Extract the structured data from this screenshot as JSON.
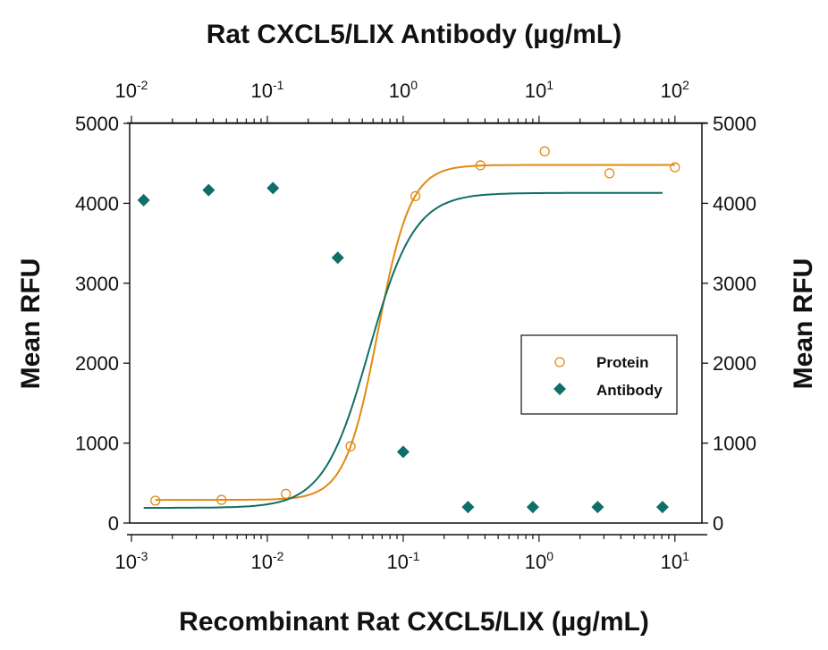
{
  "chart_data": {
    "type": "scatter",
    "title_top": "Rat CXCL5/LIX Antibody (µg/mL)",
    "xlabel": "Recombinant Rat CXCL5/LIX (µg/mL)",
    "ylabel": "Mean RFU",
    "ylabel_right": "Mean RFU",
    "x_scale": "log",
    "xlim": [
      0.00097,
      15.8
    ],
    "x_top_scale": "log",
    "x_top_lim": [
      0.0097,
      158
    ],
    "ylim": [
      0,
      5000
    ],
    "y_ticks": [
      "0",
      "1000",
      "2000",
      "3000",
      "4000",
      "5000"
    ],
    "x_ticks": [
      {
        "base": "10",
        "exp": "-3"
      },
      {
        "base": "10",
        "exp": "-2"
      },
      {
        "base": "10",
        "exp": "-1"
      },
      {
        "base": "10",
        "exp": "0"
      },
      {
        "base": "10",
        "exp": "1"
      }
    ],
    "x_top_ticks": [
      {
        "base": "10",
        "exp": "-2"
      },
      {
        "base": "10",
        "exp": "-1"
      },
      {
        "base": "10",
        "exp": "0"
      },
      {
        "base": "10",
        "exp": "1"
      },
      {
        "base": "10",
        "exp": "2"
      }
    ],
    "grid": false,
    "legend_position": "center-right",
    "series": [
      {
        "name": "Protein",
        "axis": "bottom",
        "marker": "open-circle",
        "color": "#E08A12",
        "x": [
          0.0015,
          0.0046,
          0.0137,
          0.041,
          0.123,
          0.37,
          1.1,
          3.3,
          10
        ],
        "y": [
          280,
          290,
          365,
          960,
          4090,
          4475,
          4650,
          4375,
          4450
        ],
        "fit": {
          "bottom": 290,
          "top": 4480,
          "ec50": 0.065,
          "hill": 3.6
        }
      },
      {
        "name": "Antibody",
        "axis": "top",
        "marker": "filled-diamond",
        "color": "#0E6E69",
        "x": [
          0.0123,
          0.037,
          0.11,
          0.33,
          1,
          3,
          9,
          27,
          81
        ],
        "y": [
          4040,
          4165,
          4190,
          3320,
          890,
          200,
          200,
          200,
          200
        ],
        "fit": {
          "bottom": 190,
          "top": 4130,
          "ec50": 0.56,
          "hill": 2.6
        }
      }
    ]
  }
}
